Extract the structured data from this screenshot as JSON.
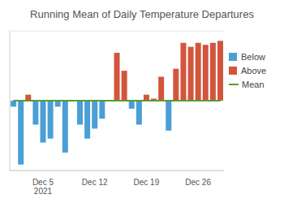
{
  "chart_data": {
    "type": "bar",
    "title": "Running Mean of Daily Temperature Departures",
    "categories": [
      null,
      null,
      null,
      null,
      "Dec 5\n2021",
      null,
      null,
      null,
      null,
      null,
      null,
      "Dec 12",
      null,
      null,
      null,
      null,
      null,
      null,
      "Dec 19",
      null,
      null,
      null,
      null,
      null,
      null,
      "Dec 26",
      null,
      null,
      null
    ],
    "series": [
      {
        "name": "Below",
        "type": "bar",
        "color": "#4a9fd6",
        "values": [
          -0.3,
          -3.2,
          null,
          -1.2,
          -2.1,
          -1.9,
          -0.3,
          -2.6,
          null,
          -1.2,
          -1.9,
          -1.4,
          -0.9,
          null,
          null,
          null,
          -0.4,
          -1.2,
          null,
          null,
          null,
          -1.5,
          null,
          null,
          null,
          null,
          null,
          null,
          null
        ]
      },
      {
        "name": "Above",
        "type": "bar",
        "color": "#d2553c",
        "values": [
          null,
          null,
          0.3,
          null,
          null,
          null,
          null,
          null,
          null,
          null,
          null,
          null,
          null,
          null,
          2.4,
          1.5,
          null,
          null,
          0.3,
          0.1,
          1.2,
          null,
          1.6,
          2.9,
          2.7,
          2.9,
          2.8,
          2.9,
          3.0
        ]
      },
      {
        "name": "Mean",
        "type": "line",
        "color": "#5a9a32",
        "values": [
          0,
          0,
          0,
          0,
          0,
          0,
          0,
          0,
          0,
          0,
          0,
          0,
          0,
          0,
          0,
          0,
          0,
          0,
          0,
          0,
          0,
          0,
          0,
          0,
          0,
          0,
          0,
          0,
          0
        ]
      }
    ],
    "ylim": [
      -3.5,
      3.5
    ],
    "yticks": [
      -3,
      -2,
      -1,
      0,
      1,
      2,
      3
    ],
    "grid": true,
    "stacked": true,
    "tick_labels": "x",
    "legend": "top-right"
  }
}
